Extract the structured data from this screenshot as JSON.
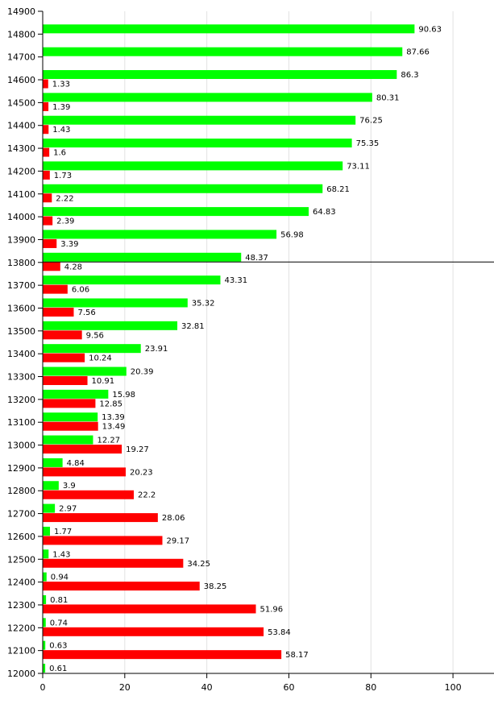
{
  "chart_data": {
    "type": "bar",
    "orientation": "horizontal",
    "title": "",
    "xlabel": "",
    "ylabel": "",
    "xlim": [
      0,
      110
    ],
    "ylim": [
      12000,
      14900
    ],
    "x_ticks": [
      0,
      20,
      40,
      60,
      80,
      100
    ],
    "y_ticks": [
      12000,
      12100,
      12200,
      12300,
      12400,
      12500,
      12600,
      12700,
      12800,
      12900,
      13000,
      13100,
      13200,
      13300,
      13400,
      13500,
      13600,
      13700,
      13800,
      13900,
      14000,
      14100,
      14200,
      14300,
      14400,
      14500,
      14600,
      14700,
      14800,
      14900
    ],
    "grid": "vertical",
    "reference_line": 13800,
    "categories": [
      14800,
      14700,
      14600,
      14500,
      14400,
      14300,
      14200,
      14100,
      14000,
      13900,
      13800,
      13700,
      13600,
      13500,
      13400,
      13300,
      13200,
      13100,
      13000,
      12900,
      12800,
      12700,
      12600,
      12500,
      12400,
      12300,
      12200,
      12100,
      12000
    ],
    "series": [
      {
        "color": "#00ff00",
        "values": [
          90.63,
          87.66,
          86.3,
          80.31,
          76.25,
          75.35,
          73.11,
          68.21,
          64.83,
          56.98,
          48.37,
          43.31,
          35.32,
          32.81,
          23.91,
          20.39,
          15.98,
          13.39,
          12.27,
          4.84,
          3.9,
          2.97,
          1.77,
          1.43,
          0.94,
          0.81,
          0.74,
          0.63,
          0.61
        ]
      },
      {
        "color": "#ff0000",
        "values": [
          null,
          null,
          1.33,
          1.39,
          1.43,
          1.6,
          1.73,
          2.22,
          2.39,
          3.39,
          4.28,
          6.06,
          7.56,
          9.56,
          10.24,
          10.91,
          12.85,
          13.49,
          19.27,
          20.23,
          22.2,
          28.06,
          29.17,
          34.25,
          38.25,
          51.96,
          53.84,
          58.17,
          null
        ]
      }
    ]
  }
}
